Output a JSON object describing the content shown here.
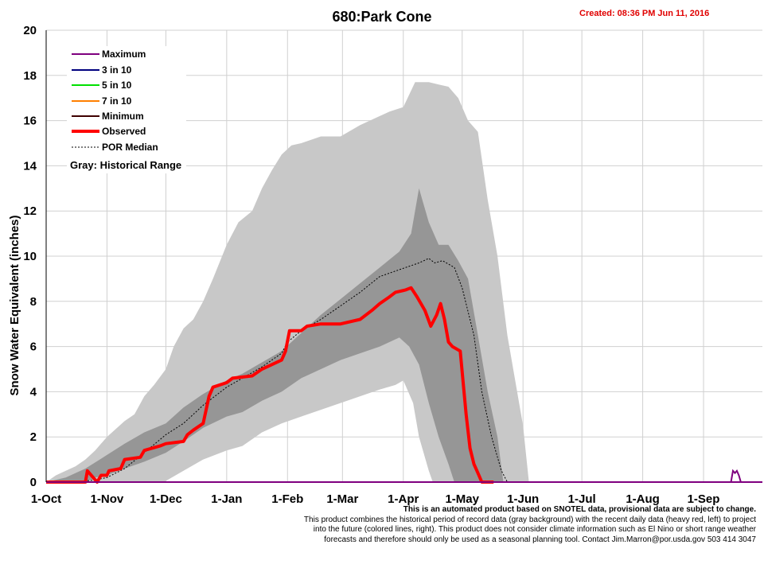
{
  "title": "680:Park Cone",
  "created": "Created: 08:36 PM Jun 11, 2016",
  "footnote": {
    "line1": "This is an automated product based on SNOTEL data, provisional data are subject to change.",
    "line2": "This product combines the historical period of record data (gray background) with the recent daily data (heavy red, left) to project",
    "line3": "into the future (colored lines, right). This product does not consider climate information such as El Nino or short range weather",
    "line4": "forecasts and therefore should only be used as a seasonal planning tool. Contact Jim.Marron@por.usda.gov 503 414 3047"
  },
  "chart_data": {
    "type": "area",
    "title": "680:Park Cone",
    "ylabel": "Snow Water Equivalent (inches)",
    "xlabel": "",
    "ylim": [
      0,
      20
    ],
    "yticks": [
      "0",
      "2",
      "4",
      "6",
      "8",
      "10",
      "12",
      "14",
      "16",
      "18",
      "20"
    ],
    "xlim": [
      0,
      365
    ],
    "x_unit": "days since 1-Oct",
    "xtick_labels": [
      "1-Oct",
      "1-Nov",
      "1-Dec",
      "1-Jan",
      "1-Feb",
      "1-Mar",
      "1-Apr",
      "1-May",
      "1-Jun",
      "1-Jul",
      "1-Aug",
      "1-Sep"
    ],
    "xtick_days": [
      0,
      31,
      61,
      92,
      123,
      151,
      182,
      212,
      243,
      273,
      304,
      335
    ],
    "grid": true,
    "legend_position": "top-left",
    "legend": [
      {
        "name": "Maximum",
        "color": "#7f007f"
      },
      {
        "name": "3 in 10",
        "color": "#00007f"
      },
      {
        "name": "5 in 10",
        "color": "#00e000"
      },
      {
        "name": "7 in 10",
        "color": "#ff7f00"
      },
      {
        "name": "Minimum",
        "color": "#3f0000"
      },
      {
        "name": "Observed",
        "color": "#ff0000"
      },
      {
        "name": "POR Median",
        "color": "#000000"
      }
    ],
    "gray_note": "Gray: Historical Range",
    "colors": {
      "range_outer": "#c8c8c8",
      "range_inner": "#969696",
      "observed": "#ff0000",
      "median": "#000000"
    },
    "historical_max": [
      [
        0,
        0
      ],
      [
        5,
        0.3
      ],
      [
        10,
        0.5
      ],
      [
        15,
        0.7
      ],
      [
        20,
        1.0
      ],
      [
        25,
        1.4
      ],
      [
        31,
        2.0
      ],
      [
        40,
        2.7
      ],
      [
        45,
        3.0
      ],
      [
        50,
        3.8
      ],
      [
        55,
        4.3
      ],
      [
        61,
        5.0
      ],
      [
        65,
        6.0
      ],
      [
        70,
        6.8
      ],
      [
        75,
        7.2
      ],
      [
        80,
        8.0
      ],
      [
        85,
        9.0
      ],
      [
        92,
        10.5
      ],
      [
        98,
        11.5
      ],
      [
        105,
        12.0
      ],
      [
        110,
        13.0
      ],
      [
        115,
        13.8
      ],
      [
        120,
        14.5
      ],
      [
        125,
        14.9
      ],
      [
        130,
        15.0
      ],
      [
        140,
        15.3
      ],
      [
        150,
        15.3
      ],
      [
        160,
        15.8
      ],
      [
        170,
        16.2
      ],
      [
        175,
        16.4
      ],
      [
        182,
        16.6
      ],
      [
        188,
        17.7
      ],
      [
        195,
        17.7
      ],
      [
        200,
        17.6
      ],
      [
        205,
        17.5
      ],
      [
        210,
        17.0
      ],
      [
        215,
        16.0
      ],
      [
        220,
        15.5
      ],
      [
        225,
        12.5
      ],
      [
        230,
        10.0
      ],
      [
        235,
        6.5
      ],
      [
        240,
        4.0
      ],
      [
        243,
        2.5
      ],
      [
        246,
        0
      ]
    ],
    "historical_upper": [
      [
        0,
        0
      ],
      [
        10,
        0.2
      ],
      [
        20,
        0.6
      ],
      [
        31,
        1.2
      ],
      [
        40,
        1.7
      ],
      [
        50,
        2.2
      ],
      [
        61,
        2.6
      ],
      [
        70,
        3.3
      ],
      [
        80,
        3.9
      ],
      [
        92,
        4.5
      ],
      [
        100,
        4.8
      ],
      [
        110,
        5.3
      ],
      [
        120,
        5.8
      ],
      [
        130,
        6.6
      ],
      [
        140,
        7.4
      ],
      [
        150,
        8.1
      ],
      [
        160,
        8.8
      ],
      [
        170,
        9.5
      ],
      [
        180,
        10.2
      ],
      [
        186,
        11.0
      ],
      [
        190,
        13.0
      ],
      [
        195,
        11.5
      ],
      [
        200,
        10.5
      ],
      [
        205,
        10.5
      ],
      [
        210,
        9.8
      ],
      [
        215,
        9.0
      ],
      [
        220,
        6.5
      ],
      [
        225,
        4.0
      ],
      [
        230,
        2.0
      ],
      [
        233,
        0
      ]
    ],
    "historical_lower": [
      [
        0,
        0
      ],
      [
        20,
        0
      ],
      [
        25,
        0.2
      ],
      [
        31,
        0.3
      ],
      [
        40,
        0.6
      ],
      [
        50,
        0.9
      ],
      [
        61,
        1.3
      ],
      [
        70,
        1.8
      ],
      [
        80,
        2.4
      ],
      [
        92,
        2.9
      ],
      [
        100,
        3.1
      ],
      [
        110,
        3.6
      ],
      [
        120,
        4.0
      ],
      [
        130,
        4.6
      ],
      [
        140,
        5.0
      ],
      [
        150,
        5.4
      ],
      [
        160,
        5.7
      ],
      [
        170,
        6.0
      ],
      [
        180,
        6.4
      ],
      [
        185,
        6.0
      ],
      [
        190,
        5.2
      ],
      [
        195,
        3.5
      ],
      [
        200,
        2.0
      ],
      [
        205,
        0.8
      ],
      [
        208,
        0
      ]
    ],
    "historical_min": [
      [
        0,
        0
      ],
      [
        60,
        0
      ],
      [
        70,
        0.5
      ],
      [
        80,
        1.0
      ],
      [
        92,
        1.4
      ],
      [
        100,
        1.6
      ],
      [
        110,
        2.2
      ],
      [
        120,
        2.6
      ],
      [
        130,
        2.9
      ],
      [
        140,
        3.2
      ],
      [
        150,
        3.5
      ],
      [
        160,
        3.8
      ],
      [
        170,
        4.1
      ],
      [
        178,
        4.3
      ],
      [
        182,
        4.5
      ],
      [
        187,
        3.5
      ],
      [
        190,
        2.0
      ],
      [
        195,
        0.5
      ],
      [
        197,
        0
      ]
    ],
    "por_median": [
      [
        0,
        0
      ],
      [
        15,
        0
      ],
      [
        25,
        0.1
      ],
      [
        31,
        0.2
      ],
      [
        40,
        0.6
      ],
      [
        50,
        1.3
      ],
      [
        61,
        2.1
      ],
      [
        70,
        2.6
      ],
      [
        80,
        3.4
      ],
      [
        92,
        4.2
      ],
      [
        100,
        4.6
      ],
      [
        110,
        5.1
      ],
      [
        120,
        5.7
      ],
      [
        123,
        6.2
      ],
      [
        130,
        6.7
      ],
      [
        140,
        7.2
      ],
      [
        150,
        7.8
      ],
      [
        160,
        8.4
      ],
      [
        170,
        9.1
      ],
      [
        180,
        9.4
      ],
      [
        190,
        9.7
      ],
      [
        195,
        9.9
      ],
      [
        198,
        9.7
      ],
      [
        202,
        9.8
      ],
      [
        208,
        9.5
      ],
      [
        212,
        8.6
      ],
      [
        218,
        6.5
      ],
      [
        222,
        4.0
      ],
      [
        227,
        2.0
      ],
      [
        232,
        0.5
      ],
      [
        235,
        0
      ]
    ],
    "observed": [
      [
        0,
        0
      ],
      [
        20,
        0
      ],
      [
        21,
        0.5
      ],
      [
        25,
        0.1
      ],
      [
        26,
        0
      ],
      [
        28,
        0.3
      ],
      [
        31,
        0.3
      ],
      [
        32,
        0.5
      ],
      [
        38,
        0.6
      ],
      [
        40,
        1.0
      ],
      [
        48,
        1.1
      ],
      [
        50,
        1.4
      ],
      [
        58,
        1.6
      ],
      [
        61,
        1.7
      ],
      [
        70,
        1.8
      ],
      [
        72,
        2.1
      ],
      [
        75,
        2.3
      ],
      [
        80,
        2.6
      ],
      [
        83,
        3.8
      ],
      [
        85,
        4.2
      ],
      [
        92,
        4.4
      ],
      [
        95,
        4.6
      ],
      [
        105,
        4.7
      ],
      [
        110,
        5.0
      ],
      [
        115,
        5.2
      ],
      [
        120,
        5.4
      ],
      [
        122,
        5.8
      ],
      [
        124,
        6.7
      ],
      [
        130,
        6.7
      ],
      [
        133,
        6.9
      ],
      [
        140,
        7.0
      ],
      [
        150,
        7.0
      ],
      [
        160,
        7.2
      ],
      [
        166,
        7.6
      ],
      [
        170,
        7.9
      ],
      [
        175,
        8.2
      ],
      [
        178,
        8.4
      ],
      [
        183,
        8.5
      ],
      [
        186,
        8.6
      ],
      [
        189,
        8.2
      ],
      [
        193,
        7.6
      ],
      [
        196,
        6.9
      ],
      [
        199,
        7.4
      ],
      [
        201,
        7.9
      ],
      [
        203,
        7.2
      ],
      [
        205,
        6.2
      ],
      [
        207,
        6.0
      ],
      [
        211,
        5.8
      ],
      [
        214,
        3.0
      ],
      [
        216,
        1.5
      ],
      [
        218,
        0.8
      ],
      [
        220,
        0.4
      ],
      [
        222,
        0
      ],
      [
        228,
        0
      ]
    ],
    "late_maximum": [
      [
        349,
        0
      ],
      [
        350,
        0.5
      ],
      [
        351,
        0.4
      ],
      [
        352,
        0.5
      ],
      [
        353,
        0.3
      ],
      [
        354,
        0
      ]
    ]
  }
}
